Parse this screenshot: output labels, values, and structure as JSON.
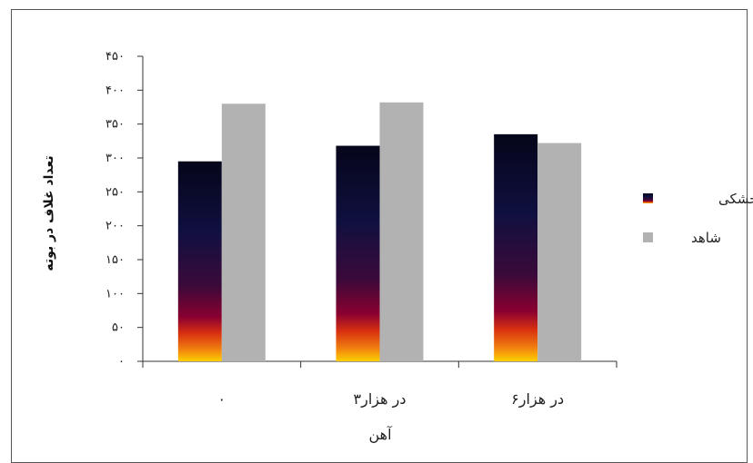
{
  "chart_data": {
    "type": "bar",
    "categories": [
      "۰",
      "۳در هزار",
      "۶در هزار"
    ],
    "xlabel": "آهن",
    "ylabel": "تعداد غلاف در بوته",
    "ylim": [
      0,
      450
    ],
    "yticks": [
      0,
      50,
      100,
      150,
      200,
      250,
      300,
      350,
      400,
      450
    ],
    "ytick_labels": [
      "۰",
      "۵۰",
      "۱۰۰",
      "۱۵۰",
      "۲۰۰",
      "۲۵۰",
      "۳۰۰",
      "۳۵۰",
      "۴۰۰",
      "۴۵۰"
    ],
    "grid": false,
    "legend_position": "right",
    "series": [
      {
        "name": "تنش خشکی",
        "values": [
          295,
          318,
          335
        ],
        "color": "gradient"
      },
      {
        "name": "شاهد",
        "values": [
          380,
          382,
          322
        ],
        "color": "#b2b2b2"
      }
    ]
  }
}
